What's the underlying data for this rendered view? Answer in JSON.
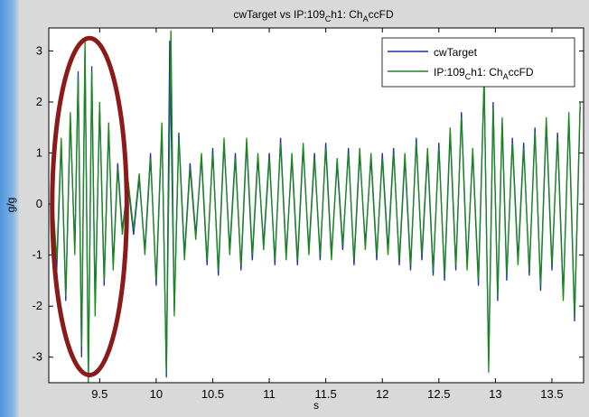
{
  "chart_data": {
    "type": "line",
    "title": {
      "a": "cwTarget  vs  IP:109",
      "sub1": "C",
      "b": "h1: Ch",
      "sub2": "A",
      "c": "ccFD"
    },
    "xlabel": "s",
    "ylabel": "g/g",
    "xlim": [
      9.05,
      13.78
    ],
    "ylim": [
      -3.5,
      3.45
    ],
    "xticks": [
      9.5,
      10,
      10.5,
      11,
      11.5,
      12,
      12.5,
      13,
      13.5
    ],
    "xtick_labels": [
      "9.5",
      "10",
      "10.5",
      "11",
      "11.5",
      "12",
      "12.5",
      "13",
      "13.5"
    ],
    "yticks": [
      -3,
      -2,
      -1,
      0,
      1,
      2,
      3
    ],
    "ytick_labels": [
      "-3",
      "-2",
      "-1",
      "0",
      "1",
      "2",
      "3"
    ],
    "grid": false,
    "legend_position": "top-right",
    "series": [
      {
        "name": "cwTarget",
        "color": "#1f2fa8",
        "points": [
          [
            9.08,
            0.2
          ],
          [
            9.12,
            -1.3
          ],
          [
            9.16,
            1.2
          ],
          [
            9.2,
            -1.9
          ],
          [
            9.24,
            1.7
          ],
          [
            9.28,
            -0.9
          ],
          [
            9.31,
            2.6
          ],
          [
            9.34,
            -3.0
          ],
          [
            9.37,
            3.0
          ],
          [
            9.4,
            -3.4
          ],
          [
            9.43,
            2.7
          ],
          [
            9.46,
            -2.0
          ],
          [
            9.5,
            1.9
          ],
          [
            9.54,
            -1.6
          ],
          [
            9.58,
            1.5
          ],
          [
            9.62,
            -1.2
          ],
          [
            9.66,
            0.8
          ],
          [
            9.7,
            -0.5
          ],
          [
            9.75,
            0.4
          ],
          [
            9.8,
            -0.6
          ],
          [
            9.85,
            0.5
          ],
          [
            9.9,
            -0.9
          ],
          [
            9.95,
            1.0
          ],
          [
            10.0,
            -1.6
          ],
          [
            10.05,
            1.5
          ],
          [
            10.09,
            -3.4
          ],
          [
            10.12,
            3.2
          ],
          [
            10.16,
            -2.1
          ],
          [
            10.2,
            1.4
          ],
          [
            10.25,
            -1.0
          ],
          [
            10.3,
            0.8
          ],
          [
            10.35,
            -0.6
          ],
          [
            10.4,
            0.9
          ],
          [
            10.45,
            -1.2
          ],
          [
            10.5,
            1.1
          ],
          [
            10.55,
            -1.4
          ],
          [
            10.6,
            1.2
          ],
          [
            10.65,
            -0.9
          ],
          [
            10.7,
            1.0
          ],
          [
            10.75,
            -1.3
          ],
          [
            10.8,
            1.2
          ],
          [
            10.85,
            -1.1
          ],
          [
            10.9,
            0.9
          ],
          [
            10.95,
            -0.8
          ],
          [
            11.0,
            1.0
          ],
          [
            11.05,
            -1.2
          ],
          [
            11.1,
            1.3
          ],
          [
            11.15,
            -1.0
          ],
          [
            11.2,
            0.9
          ],
          [
            11.25,
            -1.2
          ],
          [
            11.3,
            1.1
          ],
          [
            11.35,
            -0.9
          ],
          [
            11.4,
            1.0
          ],
          [
            11.45,
            -1.1
          ],
          [
            11.5,
            1.2
          ],
          [
            11.55,
            -1.0
          ],
          [
            11.6,
            0.8
          ],
          [
            11.65,
            -0.9
          ],
          [
            11.7,
            1.1
          ],
          [
            11.75,
            -1.2
          ],
          [
            11.8,
            1.0
          ],
          [
            11.85,
            -0.8
          ],
          [
            11.9,
            0.9
          ],
          [
            11.95,
            -1.1
          ],
          [
            12.0,
            1.0
          ],
          [
            12.05,
            -0.9
          ],
          [
            12.1,
            1.1
          ],
          [
            12.15,
            -1.2
          ],
          [
            12.2,
            0.9
          ],
          [
            12.25,
            -1.3
          ],
          [
            12.3,
            1.3
          ],
          [
            12.35,
            -1.1
          ],
          [
            12.4,
            1.0
          ],
          [
            12.45,
            -1.4
          ],
          [
            12.5,
            1.2
          ],
          [
            12.55,
            -1.5
          ],
          [
            12.6,
            1.4
          ],
          [
            12.65,
            -1.3
          ],
          [
            12.7,
            1.8
          ],
          [
            12.75,
            -1.2
          ],
          [
            12.8,
            1.0
          ],
          [
            12.85,
            -1.6
          ],
          [
            12.9,
            2.4
          ],
          [
            12.94,
            -3.1
          ],
          [
            12.98,
            2.0
          ],
          [
            13.02,
            -1.9
          ],
          [
            13.06,
            1.6
          ],
          [
            13.1,
            -1.5
          ],
          [
            13.15,
            1.3
          ],
          [
            13.2,
            -1.1
          ],
          [
            13.25,
            1.2
          ],
          [
            13.3,
            -1.4
          ],
          [
            13.35,
            1.5
          ],
          [
            13.4,
            -1.7
          ],
          [
            13.45,
            1.6
          ],
          [
            13.5,
            -1.3
          ],
          [
            13.55,
            1.4
          ],
          [
            13.6,
            -1.8
          ],
          [
            13.65,
            1.7
          ],
          [
            13.7,
            -2.3
          ],
          [
            13.75,
            1.9
          ]
        ]
      },
      {
        "name": "IP:109ch1: ChAccFD",
        "color": "#1a8a1a",
        "points": [
          [
            9.08,
            0.3
          ],
          [
            9.12,
            -1.1
          ],
          [
            9.16,
            1.3
          ],
          [
            9.2,
            -1.8
          ],
          [
            9.24,
            1.8
          ],
          [
            9.28,
            -1.0
          ],
          [
            9.31,
            2.5
          ],
          [
            9.34,
            -2.8
          ],
          [
            9.37,
            3.2
          ],
          [
            9.4,
            -3.5
          ],
          [
            9.43,
            2.6
          ],
          [
            9.46,
            -2.2
          ],
          [
            9.5,
            2.0
          ],
          [
            9.54,
            -1.5
          ],
          [
            9.58,
            1.6
          ],
          [
            9.62,
            -1.3
          ],
          [
            9.66,
            0.7
          ],
          [
            9.7,
            -0.6
          ],
          [
            9.75,
            0.5
          ],
          [
            9.8,
            -0.5
          ],
          [
            9.85,
            0.6
          ],
          [
            9.9,
            -1.0
          ],
          [
            9.95,
            0.9
          ],
          [
            10.0,
            -1.5
          ],
          [
            10.05,
            1.6
          ],
          [
            10.09,
            -3.3
          ],
          [
            10.13,
            3.4
          ],
          [
            10.16,
            -2.2
          ],
          [
            10.2,
            1.3
          ],
          [
            10.25,
            -1.1
          ],
          [
            10.3,
            0.7
          ],
          [
            10.35,
            -0.7
          ],
          [
            10.4,
            1.0
          ],
          [
            10.45,
            -1.1
          ],
          [
            10.5,
            1.0
          ],
          [
            10.55,
            -1.3
          ],
          [
            10.6,
            1.3
          ],
          [
            10.65,
            -1.0
          ],
          [
            10.7,
            0.9
          ],
          [
            10.75,
            -1.2
          ],
          [
            10.8,
            1.3
          ],
          [
            10.85,
            -1.0
          ],
          [
            10.9,
            1.0
          ],
          [
            10.95,
            -0.9
          ],
          [
            11.0,
            0.9
          ],
          [
            11.05,
            -1.1
          ],
          [
            11.1,
            1.2
          ],
          [
            11.15,
            -1.1
          ],
          [
            11.2,
            1.0
          ],
          [
            11.25,
            -1.1
          ],
          [
            11.3,
            1.2
          ],
          [
            11.35,
            -1.0
          ],
          [
            11.4,
            0.9
          ],
          [
            11.45,
            -1.0
          ],
          [
            11.5,
            1.1
          ],
          [
            11.55,
            -1.1
          ],
          [
            11.6,
            0.9
          ],
          [
            11.65,
            -0.8
          ],
          [
            11.7,
            1.0
          ],
          [
            11.75,
            -1.1
          ],
          [
            11.8,
            1.1
          ],
          [
            11.85,
            -0.9
          ],
          [
            11.9,
            1.0
          ],
          [
            11.95,
            -1.0
          ],
          [
            12.0,
            0.9
          ],
          [
            12.05,
            -1.0
          ],
          [
            12.1,
            1.0
          ],
          [
            12.15,
            -1.1
          ],
          [
            12.2,
            1.0
          ],
          [
            12.25,
            -1.2
          ],
          [
            12.3,
            1.2
          ],
          [
            12.35,
            -1.0
          ],
          [
            12.4,
            1.1
          ],
          [
            12.45,
            -1.3
          ],
          [
            12.5,
            1.1
          ],
          [
            12.55,
            -1.4
          ],
          [
            12.6,
            1.5
          ],
          [
            12.65,
            -1.2
          ],
          [
            12.7,
            1.7
          ],
          [
            12.75,
            -1.3
          ],
          [
            12.8,
            1.1
          ],
          [
            12.85,
            -1.5
          ],
          [
            12.9,
            2.5
          ],
          [
            12.94,
            -3.3
          ],
          [
            12.98,
            1.9
          ],
          [
            13.02,
            -1.8
          ],
          [
            13.06,
            1.7
          ],
          [
            13.1,
            -1.4
          ],
          [
            13.15,
            1.2
          ],
          [
            13.2,
            -1.2
          ],
          [
            13.25,
            1.1
          ],
          [
            13.3,
            -1.3
          ],
          [
            13.35,
            1.4
          ],
          [
            13.4,
            -1.6
          ],
          [
            13.45,
            1.7
          ],
          [
            13.5,
            -1.2
          ],
          [
            13.55,
            1.3
          ],
          [
            13.6,
            -1.9
          ],
          [
            13.65,
            1.8
          ],
          [
            13.7,
            -2.2
          ],
          [
            13.75,
            2.0
          ]
        ]
      }
    ],
    "legend": {
      "entry1": "cwTarget",
      "entry2": {
        "a": "IP:109",
        "sub1": "C",
        "b": "h1: Ch",
        "sub2": "A",
        "c": "ccFD"
      }
    },
    "annotation": {
      "type": "ellipse",
      "color": "#8b1a1a",
      "center_x": 9.41,
      "center_y": -0.05,
      "x_radius": 0.33,
      "y_radius": 3.3
    }
  },
  "colors": {
    "axes_bg": "#ffffff",
    "figure_bg": "#d9d9d9",
    "frame_edge": "#4f95db",
    "annotation": "#8b1a1a"
  }
}
